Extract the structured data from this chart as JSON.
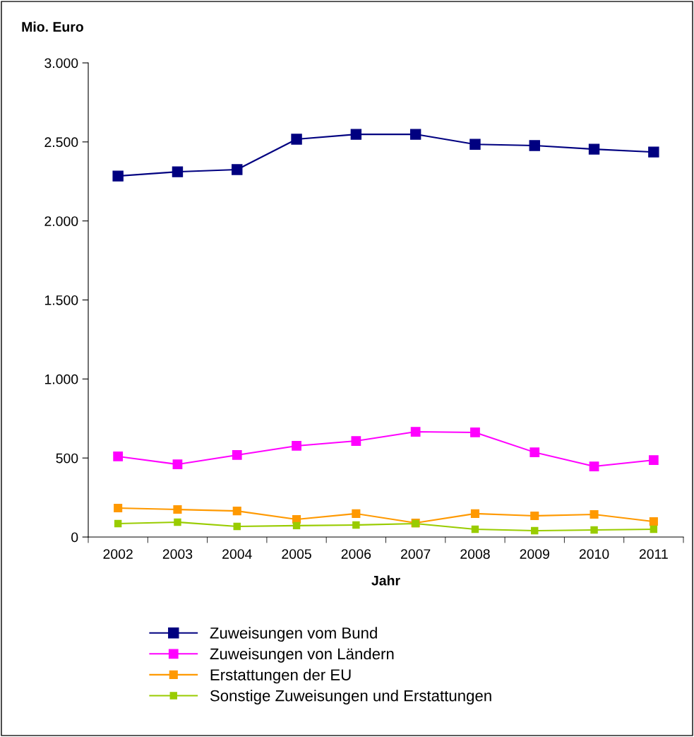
{
  "chart_data": {
    "type": "line",
    "ylabel": "Mio. Euro",
    "xlabel": "Jahr",
    "categories": [
      "2002",
      "2003",
      "2004",
      "2005",
      "2006",
      "2007",
      "2008",
      "2009",
      "2010",
      "2011"
    ],
    "ylim": [
      0,
      3000
    ],
    "yticks": [
      0,
      500,
      {
        "value": 1000,
        "label": "1.000"
      },
      {
        "value": 1500,
        "label": "1.500"
      },
      {
        "value": 2000,
        "label": "2.000"
      },
      {
        "value": 2500,
        "label": "2.500"
      },
      {
        "value": 3000,
        "label": "3.000"
      }
    ],
    "marker": "square",
    "line_style": "solid",
    "grid": false,
    "legend": "bottom",
    "series": [
      {
        "name": "Zuweisungen vom Bund",
        "color": "#000080",
        "values": [
          2284,
          2311,
          2325,
          2517,
          2548,
          2548,
          2485,
          2477,
          2454,
          2436
        ]
      },
      {
        "name": "Zuweisungen von Ländern",
        "color": "#ff00ff",
        "values": [
          510,
          460,
          519,
          577,
          608,
          666,
          662,
          536,
          447,
          487
        ]
      },
      {
        "name": "Erstattungen der EU",
        "color": "#ff9900",
        "values": [
          183,
          174,
          165,
          112,
          148,
          89,
          148,
          134,
          143,
          98
        ]
      },
      {
        "name": "Sonstige Zuweisungen und Erstattungen",
        "color": "#99cc00",
        "values": [
          85,
          94,
          67,
          72,
          76,
          85,
          49,
          40,
          45,
          49
        ]
      }
    ]
  }
}
